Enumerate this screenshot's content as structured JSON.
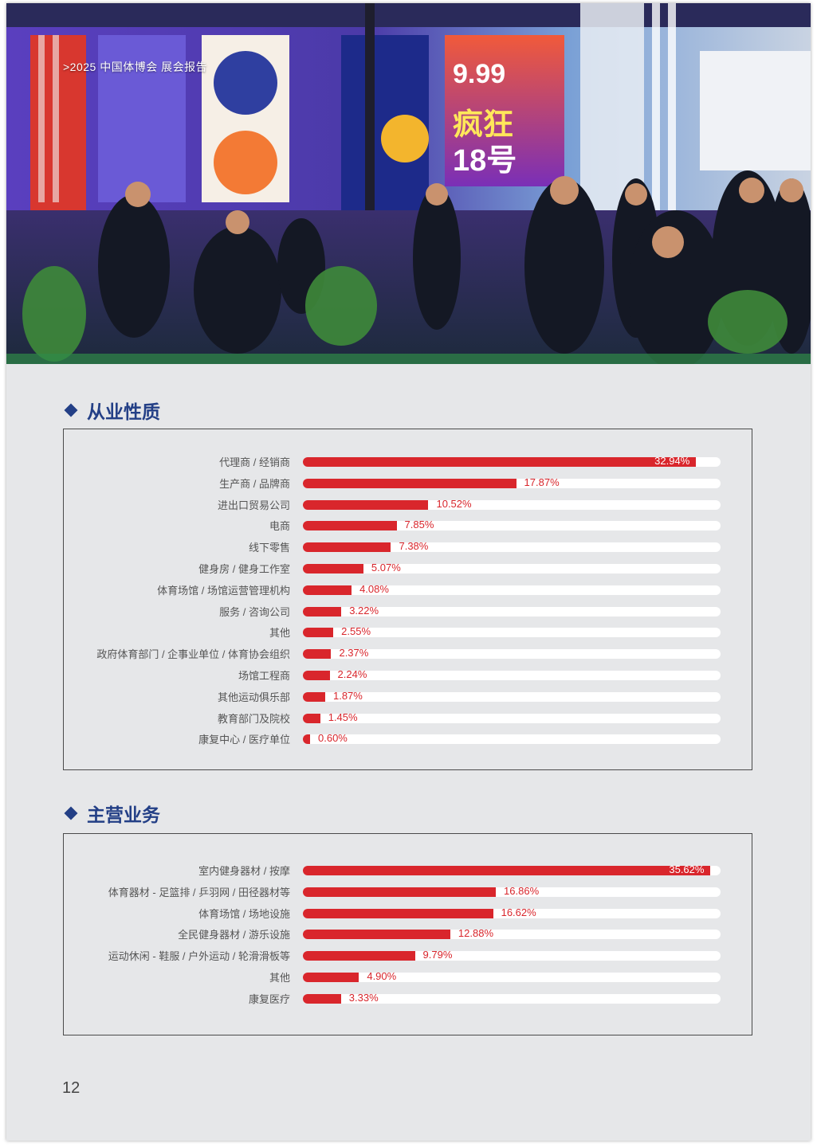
{
  "header": {
    "breadcrumb": ">2025 中国体博会  展会报告"
  },
  "photo": {
    "sign_text_a": "9.99",
    "sign_text_b": "疯狂",
    "sign_text_c": "18号"
  },
  "colors": {
    "bar": "#d9262c",
    "title": "#233f86",
    "track": "#ffffff"
  },
  "chart_data": [
    {
      "type": "bar",
      "title": "从业性质",
      "categories": [
        "代理商 / 经销商",
        "生产商 / 品牌商",
        "进出口贸易公司",
        "电商",
        "线下零售",
        "健身房 / 健身工作室",
        "体育场馆 / 场馆运营管理机构",
        "服务 / 咨询公司",
        "其他",
        "政府体育部门 / 企事业单位 / 体育协会组织",
        "场馆工程商",
        "其他运动俱乐部",
        "教育部门及院校",
        "康复中心 / 医疗单位"
      ],
      "values": [
        32.94,
        17.87,
        10.52,
        7.85,
        7.38,
        5.07,
        4.08,
        3.22,
        2.55,
        2.37,
        2.24,
        1.87,
        1.45,
        0.6
      ],
      "labels": [
        "32.94%",
        "17.87%",
        "10.52%",
        "7.85%",
        "7.38%",
        "5.07%",
        "4.08%",
        "3.22%",
        "2.55%",
        "2.37%",
        "2.24%",
        "1.87%",
        "1.45%",
        "0.60%"
      ],
      "xlim": [
        0,
        35
      ]
    },
    {
      "type": "bar",
      "title": "主营业务",
      "categories": [
        "室内健身器材 / 按摩",
        "体育器材 - 足篮排 / 乒羽网 / 田径器材等",
        "体育场馆 / 场地设施",
        "全民健身器材 / 游乐设施",
        "运动休闲 - 鞋服 / 户外运动 / 轮滑滑板等",
        "其他",
        "康复医疗"
      ],
      "values": [
        35.62,
        16.86,
        16.62,
        12.88,
        9.79,
        4.9,
        3.33
      ],
      "labels": [
        "35.62%",
        "16.86%",
        "16.62%",
        "12.88%",
        "9.79%",
        "4.90%",
        "3.33%"
      ],
      "xlim": [
        0,
        36.5
      ]
    }
  ],
  "footer": {
    "page_number": "12"
  }
}
